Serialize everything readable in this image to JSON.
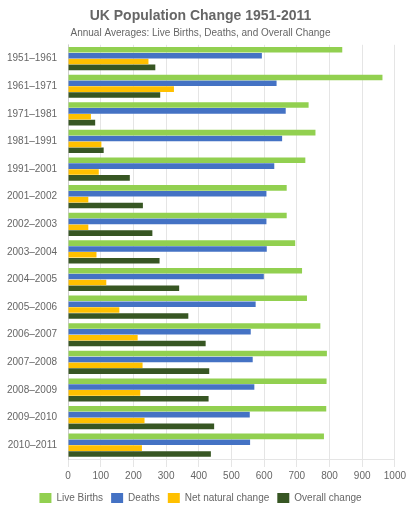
{
  "chart_data": {
    "type": "bar",
    "orientation": "horizontal",
    "title": "UK Population Change 1951-2011",
    "subtitle": "Annual Averages: Live Births, Deaths, and Overall Change",
    "categories": [
      "1951–1961",
      "1961–1971",
      "1971–1981",
      "1981–1991",
      "1991–2001",
      "2001–2002",
      "2002–2003",
      "2003–2004",
      "2004–2005",
      "2005–2006",
      "2006–2007",
      "2007–2008",
      "2008–2009",
      "2009–2010",
      "2010–2011"
    ],
    "series": [
      {
        "name": "Live Births",
        "color": "#92D050",
        "values": [
          839,
          962,
          736,
          757,
          726,
          669,
          669,
          695,
          716,
          731,
          772,
          792,
          791,
          790,
          783
        ]
      },
      {
        "name": "Deaths",
        "color": "#4472C4",
        "values": [
          593,
          638,
          666,
          655,
          631,
          607,
          607,
          608,
          599,
          574,
          559,
          565,
          570,
          556,
          557
        ]
      },
      {
        "name": "Net natural change",
        "color": "#FFC000",
        "values": [
          246,
          324,
          70,
          102,
          94,
          62,
          62,
          87,
          117,
          157,
          213,
          228,
          221,
          234,
          226
        ]
      },
      {
        "name": "Overall change",
        "color": "#375623",
        "values": [
          267,
          282,
          83,
          109,
          189,
          229,
          258,
          280,
          340,
          368,
          421,
          432,
          430,
          447,
          437
        ]
      }
    ],
    "xlim": [
      0,
      1000
    ],
    "xticks": [
      0,
      100,
      200,
      300,
      400,
      500,
      600,
      700,
      800,
      900,
      1000
    ],
    "grid": "x",
    "legend": "bottom"
  }
}
